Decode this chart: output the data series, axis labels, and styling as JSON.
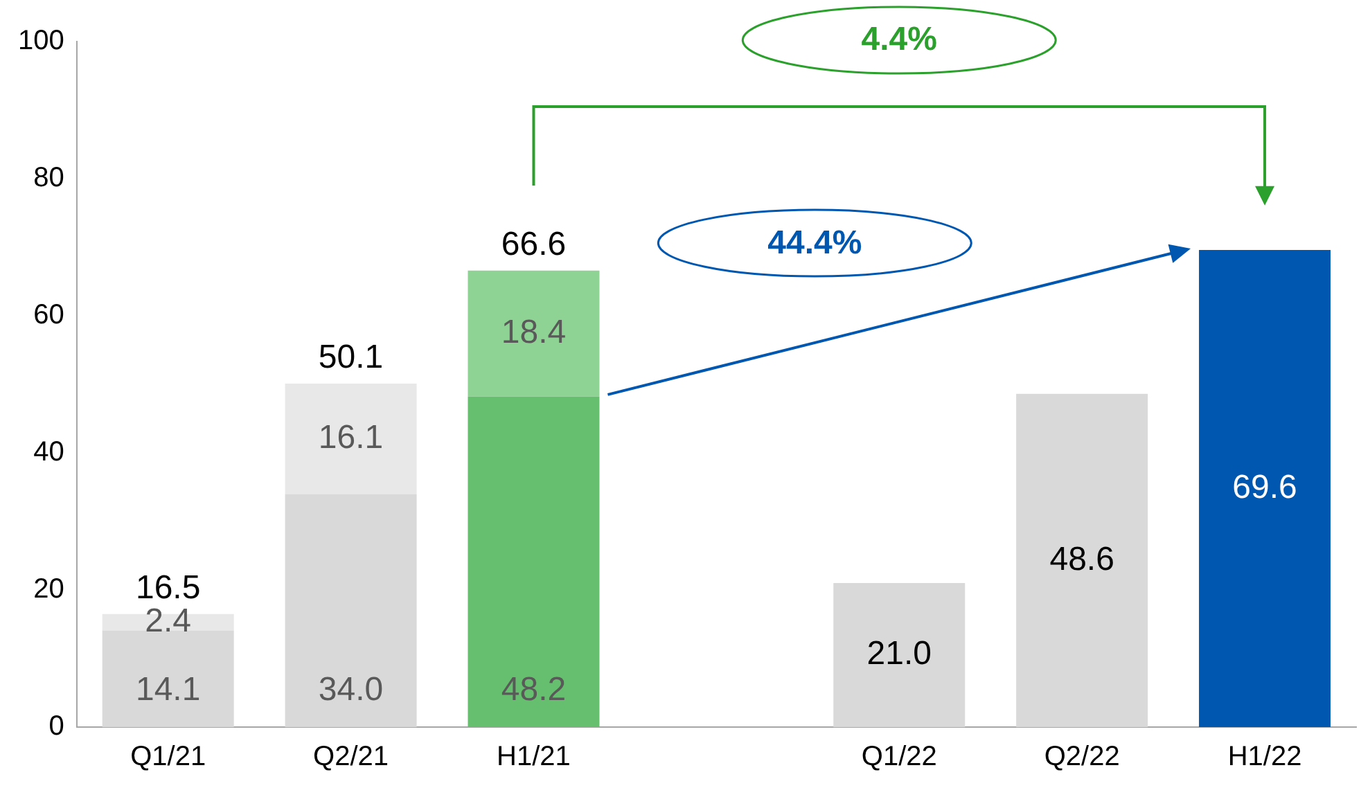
{
  "chart_data": {
    "type": "bar",
    "stacked": true,
    "categories": [
      "Q1/21",
      "Q2/21",
      "H1/21",
      null,
      "Q1/22",
      "Q2/22",
      "H1/22"
    ],
    "series": [
      {
        "values": [
          14.1,
          34.0,
          48.2,
          null,
          21.0,
          48.6,
          69.6
        ],
        "colors": [
          "#d9d9d9",
          "#d9d9d9",
          "#66bf6e",
          null,
          "#d9d9d9",
          "#d9d9d9",
          "#0057b0"
        ],
        "value_labels": [
          "14.1",
          "34.0",
          "48.2",
          null,
          "21.0",
          "48.6",
          "69.6"
        ]
      },
      {
        "values": [
          2.4,
          16.1,
          18.4,
          null,
          null,
          null,
          null
        ],
        "colors": [
          "#e8e8e8",
          "#e8e8e8",
          "#8fd394",
          null,
          null,
          null,
          null
        ],
        "value_labels": [
          "2.4",
          "16.1",
          "18.4",
          null,
          null,
          null,
          null
        ]
      }
    ],
    "totals": [
      "16.5",
      "50.1",
      "66.6",
      null,
      null,
      null,
      null
    ],
    "ylim": [
      0,
      100
    ],
    "yticks": [
      0,
      20,
      40,
      60,
      80,
      100
    ],
    "grid": false,
    "legend": false,
    "annotations": [
      "4.4%",
      "44.4%"
    ]
  }
}
